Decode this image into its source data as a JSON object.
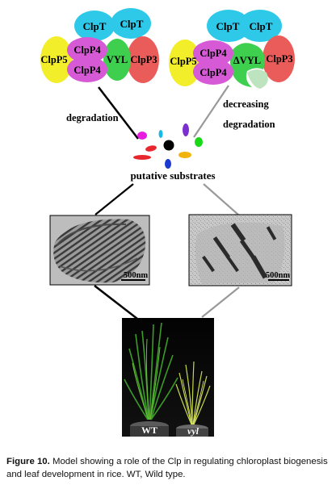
{
  "left_complex": {
    "top_left": "ClpT",
    "top_right": "ClpT",
    "left": "ClpP5",
    "center_top": "ClpP4",
    "center_bottom": "ClpP4",
    "mutant": "VYL",
    "right": "ClpP3"
  },
  "right_complex": {
    "top_left": "ClpT",
    "top_right": "ClpT",
    "left": "ClpP5",
    "center_top": "ClpP4",
    "center_bottom": "ClpP4",
    "mutant": "ΔVYL",
    "right": "ClpP3"
  },
  "labels": {
    "degradation": "degradation",
    "decreasing_line1": "decreasing",
    "decreasing_line2": "degradation",
    "substrates": "putative substrates"
  },
  "micrographs": {
    "left_scale": "500nm",
    "right_scale": "500nm"
  },
  "plants": {
    "wt": "WT",
    "vyl": "vyl"
  },
  "caption": {
    "label": "Figure 10.",
    "text": " Model showing a role of the Clp in regulating chloroplast biogenesis and leaf development in rice. WT, Wild type."
  },
  "colors": {
    "clpt": "#2ec9e8",
    "clpp5": "#f2ee2a",
    "clpp4": "#d65ad6",
    "vyl": "#3ecf4e",
    "clpp3": "#e95c5a"
  }
}
